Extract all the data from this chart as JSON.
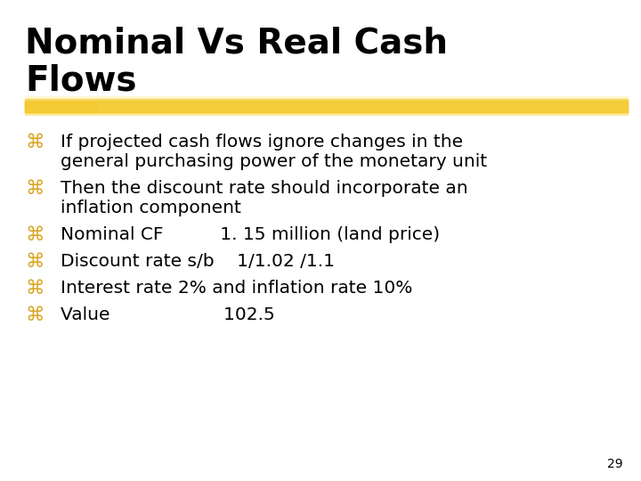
{
  "title_line1": "Nominal Vs Real Cash",
  "title_line2": "Flows",
  "title_fontsize": 28,
  "title_color": "#000000",
  "background_color": "#ffffff",
  "bullet_color": "#DAA520",
  "text_color": "#000000",
  "text_fontsize": 14.5,
  "bullet_char": "⌘",
  "page_number": "29",
  "bullet_items": [
    [
      "If projected cash flows ignore changes in the",
      "general purchasing power of the monetary unit"
    ],
    [
      "Then the discount rate should incorporate an",
      "inflation component"
    ],
    [
      "Nominal CF          1. 15 million (land price)"
    ],
    [
      "Discount rate s/b    1/1.02 /1.1"
    ],
    [
      "Interest rate 2% and inflation rate 10%"
    ],
    [
      "Value                    102.5"
    ]
  ]
}
